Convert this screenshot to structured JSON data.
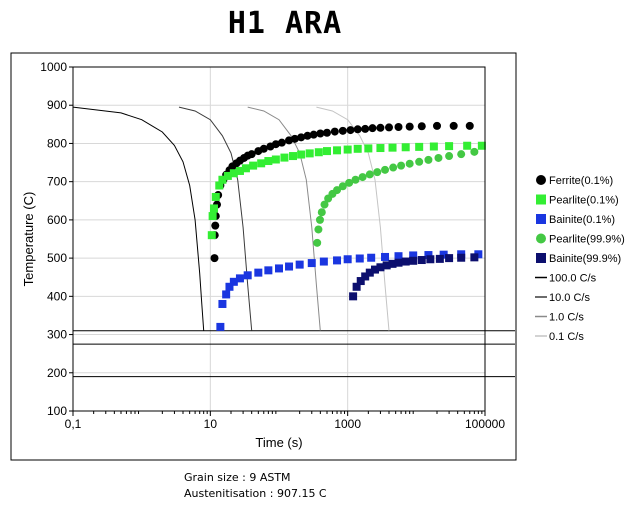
{
  "chart_data": {
    "type": "scatter",
    "title": "H1 ARA",
    "xlabel": "Time (s)",
    "ylabel": "Temperature (C)",
    "x_scale": "log",
    "xlim": [
      0.1,
      100000
    ],
    "ylim": [
      100,
      1000
    ],
    "x_ticks": [
      0.1,
      10,
      1000,
      100000
    ],
    "x_tick_labels": [
      "0,1",
      "10",
      "1000",
      "100000"
    ],
    "y_ticks": [
      100,
      200,
      300,
      400,
      500,
      600,
      700,
      800,
      900,
      1000
    ],
    "y_tick_labels": [
      "100",
      "200",
      "300",
      "400",
      "500",
      "600",
      "700",
      "800",
      "900",
      "1000"
    ],
    "grid": true,
    "legend_position": "right",
    "horizontal_lines": [
      310,
      275,
      190
    ],
    "series": [
      {
        "name": "Ferrite(0.1%)",
        "kind": "circle",
        "color": "#000000",
        "points": [
          [
            11.5,
            500
          ],
          [
            11.6,
            560
          ],
          [
            11.8,
            585
          ],
          [
            12,
            610
          ],
          [
            12.5,
            640
          ],
          [
            13,
            665
          ],
          [
            14,
            690
          ],
          [
            15.5,
            705
          ],
          [
            17,
            718
          ],
          [
            19,
            730
          ],
          [
            21,
            740
          ],
          [
            24,
            748
          ],
          [
            27,
            755
          ],
          [
            31,
            762
          ],
          [
            35,
            768
          ],
          [
            40,
            772
          ],
          [
            50,
            780
          ],
          [
            60,
            786
          ],
          [
            75,
            792
          ],
          [
            90,
            798
          ],
          [
            110,
            802
          ],
          [
            140,
            808
          ],
          [
            170,
            812
          ],
          [
            210,
            816
          ],
          [
            260,
            820
          ],
          [
            320,
            823
          ],
          [
            400,
            826
          ],
          [
            500,
            828
          ],
          [
            650,
            831
          ],
          [
            850,
            833
          ],
          [
            1100,
            835
          ],
          [
            1400,
            837
          ],
          [
            1800,
            838
          ],
          [
            2300,
            840
          ],
          [
            3000,
            841
          ],
          [
            4000,
            842
          ],
          [
            5500,
            843
          ],
          [
            8000,
            844
          ],
          [
            12000,
            845
          ],
          [
            20000,
            846
          ],
          [
            35000,
            846
          ],
          [
            60000,
            846
          ]
        ]
      },
      {
        "name": "Pearlite(0.1%)",
        "kind": "square",
        "color": "#33ee33",
        "points": [
          [
            10.5,
            560
          ],
          [
            10.8,
            610
          ],
          [
            11.3,
            630
          ],
          [
            12,
            660
          ],
          [
            13.5,
            690
          ],
          [
            15,
            705
          ],
          [
            18,
            715
          ],
          [
            22,
            722
          ],
          [
            27,
            728
          ],
          [
            33,
            735
          ],
          [
            42,
            742
          ],
          [
            55,
            748
          ],
          [
            70,
            754
          ],
          [
            90,
            758
          ],
          [
            120,
            763
          ],
          [
            160,
            767
          ],
          [
            210,
            771
          ],
          [
            280,
            774
          ],
          [
            380,
            777
          ],
          [
            500,
            780
          ],
          [
            700,
            782
          ],
          [
            1000,
            784
          ],
          [
            1400,
            786
          ],
          [
            2000,
            787
          ],
          [
            3000,
            788
          ],
          [
            4500,
            789
          ],
          [
            7000,
            790
          ],
          [
            11000,
            791
          ],
          [
            18000,
            792
          ],
          [
            30000,
            793
          ],
          [
            55000,
            794
          ],
          [
            90000,
            794
          ]
        ]
      },
      {
        "name": "Bainite(0.1%)",
        "kind": "square",
        "color": "#1a36e0",
        "points": [
          [
            14,
            320
          ],
          [
            15,
            380
          ],
          [
            17,
            405
          ],
          [
            19,
            425
          ],
          [
            22,
            438
          ],
          [
            27,
            447
          ],
          [
            35,
            455
          ],
          [
            50,
            462
          ],
          [
            70,
            468
          ],
          [
            100,
            473
          ],
          [
            140,
            478
          ],
          [
            200,
            483
          ],
          [
            300,
            487
          ],
          [
            450,
            491
          ],
          [
            700,
            494
          ],
          [
            1000,
            497
          ],
          [
            1500,
            499
          ],
          [
            2200,
            501
          ],
          [
            3500,
            503
          ],
          [
            5500,
            505
          ],
          [
            9000,
            507
          ],
          [
            15000,
            508
          ],
          [
            25000,
            509
          ],
          [
            45000,
            510
          ],
          [
            80000,
            510
          ]
        ]
      },
      {
        "name": "Pearlite(99.9%)",
        "kind": "circle",
        "color": "#44c844",
        "points": [
          [
            360,
            540
          ],
          [
            375,
            575
          ],
          [
            395,
            600
          ],
          [
            420,
            620
          ],
          [
            460,
            640
          ],
          [
            520,
            656
          ],
          [
            600,
            668
          ],
          [
            700,
            678
          ],
          [
            850,
            688
          ],
          [
            1050,
            697
          ],
          [
            1300,
            705
          ],
          [
            1650,
            712
          ],
          [
            2100,
            719
          ],
          [
            2700,
            725
          ],
          [
            3500,
            731
          ],
          [
            4600,
            737
          ],
          [
            6000,
            742
          ],
          [
            8000,
            747
          ],
          [
            11000,
            752
          ],
          [
            15000,
            757
          ],
          [
            21000,
            762
          ],
          [
            30000,
            767
          ],
          [
            45000,
            772
          ],
          [
            70000,
            778
          ]
        ]
      },
      {
        "name": "Bainite(99.9%)",
        "kind": "square",
        "color": "#0c0f6e",
        "points": [
          [
            1200,
            400
          ],
          [
            1350,
            425
          ],
          [
            1550,
            440
          ],
          [
            1800,
            452
          ],
          [
            2100,
            462
          ],
          [
            2500,
            470
          ],
          [
            3000,
            476
          ],
          [
            3700,
            481
          ],
          [
            4500,
            485
          ],
          [
            5500,
            488
          ],
          [
            7000,
            491
          ],
          [
            9000,
            493
          ],
          [
            12000,
            495
          ],
          [
            16000,
            497
          ],
          [
            22000,
            498
          ],
          [
            30000,
            500
          ],
          [
            45000,
            501
          ],
          [
            70000,
            502
          ]
        ]
      },
      {
        "name": "100.0 C/s",
        "kind": "line",
        "color": "#000000",
        "points": [
          [
            0.1,
            895
          ],
          [
            0.5,
            880
          ],
          [
            1,
            862
          ],
          [
            2,
            830
          ],
          [
            3,
            795
          ],
          [
            4,
            752
          ],
          [
            5,
            690
          ],
          [
            6,
            600
          ],
          [
            7,
            460
          ],
          [
            7.5,
            380
          ],
          [
            8,
            310
          ]
        ]
      },
      {
        "name": "10.0 C/s",
        "kind": "line",
        "color": "#3a3a3a",
        "points": [
          [
            3.5,
            895
          ],
          [
            6,
            885
          ],
          [
            10,
            862
          ],
          [
            15,
            820
          ],
          [
            20,
            775
          ],
          [
            25,
            705
          ],
          [
            30,
            580
          ],
          [
            35,
            430
          ],
          [
            40,
            310
          ]
        ]
      },
      {
        "name": "1.0 C/s",
        "kind": "line",
        "color": "#8a8a8a",
        "points": [
          [
            35,
            895
          ],
          [
            60,
            885
          ],
          [
            100,
            862
          ],
          [
            150,
            820
          ],
          [
            200,
            775
          ],
          [
            250,
            705
          ],
          [
            300,
            580
          ],
          [
            350,
            430
          ],
          [
            400,
            310
          ]
        ]
      },
      {
        "name": "0.1 C/s",
        "kind": "line",
        "color": "#c4c4c4",
        "points": [
          [
            350,
            895
          ],
          [
            600,
            885
          ],
          [
            1000,
            862
          ],
          [
            1500,
            820
          ],
          [
            2000,
            775
          ],
          [
            2500,
            705
          ],
          [
            3000,
            580
          ],
          [
            3500,
            430
          ],
          [
            4000,
            310
          ]
        ]
      }
    ]
  },
  "footer": {
    "grain_size": "Grain size : 9 ASTM",
    "austenitisation": "Austenitisation : 907.15 C"
  }
}
